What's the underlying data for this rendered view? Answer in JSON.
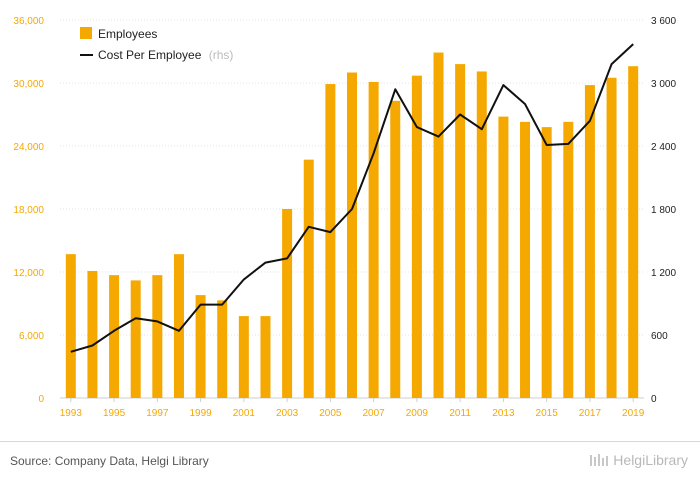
{
  "chart_data": {
    "type": "bar+line",
    "categories": [
      1993,
      1994,
      1995,
      1996,
      1997,
      1998,
      1999,
      2000,
      2001,
      2002,
      2003,
      2004,
      2005,
      2006,
      2007,
      2008,
      2009,
      2010,
      2011,
      2012,
      2013,
      2014,
      2015,
      2016,
      2017,
      2018,
      2019
    ],
    "x_tick_labels": [
      "1993",
      "1995",
      "1997",
      "1999",
      "2001",
      "2003",
      "2005",
      "2007",
      "2009",
      "2011",
      "2013",
      "2015",
      "2017",
      "2019"
    ],
    "series": [
      {
        "name": "Employees",
        "kind": "bar",
        "axis": "left",
        "color": "#f5a800",
        "values": [
          13700,
          12100,
          11700,
          11200,
          11700,
          13700,
          9800,
          9300,
          7800,
          7800,
          18000,
          22700,
          29900,
          31000,
          30100,
          28300,
          30700,
          32900,
          31800,
          31100,
          26800,
          26300,
          25800,
          26300,
          29800,
          30500,
          31600
        ]
      },
      {
        "name": "Cost Per Employee",
        "name_suffix": "(rhs)",
        "kind": "line",
        "axis": "right",
        "color": "#111111",
        "values": [
          440,
          500,
          640,
          760,
          730,
          640,
          890,
          890,
          1130,
          1290,
          1330,
          1630,
          1580,
          1800,
          2330,
          2940,
          2580,
          2490,
          2700,
          2560,
          2980,
          2800,
          2410,
          2420,
          2640,
          3180,
          3370
        ]
      }
    ],
    "y_left": {
      "min": 0,
      "max": 36000,
      "ticks": [
        "0",
        "6,000",
        "12,000",
        "18,000",
        "24,000",
        "30,000",
        "36,000"
      ],
      "tick_values": [
        0,
        6000,
        12000,
        18000,
        24000,
        30000,
        36000
      ]
    },
    "y_right": {
      "min": 0,
      "max": 3600,
      "ticks": [
        "0",
        "600",
        "1 200",
        "1 800",
        "2 400",
        "3 000",
        "3 600"
      ],
      "tick_values": [
        0,
        600,
        1200,
        1800,
        2400,
        3000,
        3600
      ]
    },
    "grid": true,
    "legend_position": "top-left"
  },
  "footer": {
    "source": "Source: Company Data, Helgi Library",
    "brand_text": "HelgiLibrary"
  }
}
